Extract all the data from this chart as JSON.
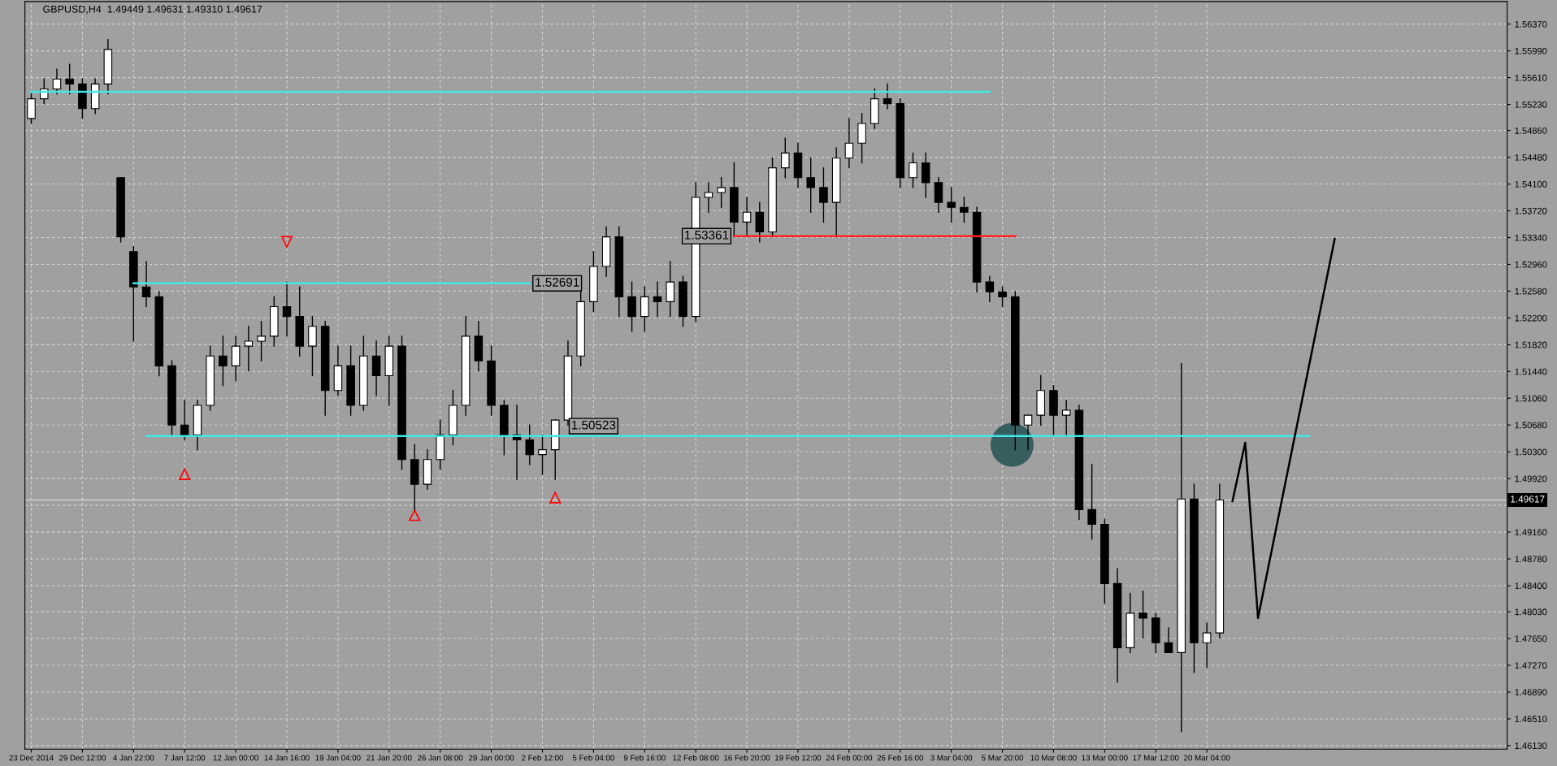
{
  "chart_data": {
    "type": "candlestick",
    "title": "GBPUSD,H4  1.49449 1.49631 1.49310 1.49617",
    "categories": [
      "23 Dec 2014",
      null,
      null,
      null,
      "29 Dec 12:00",
      null,
      null,
      null,
      "4 Jan 22:00",
      null,
      null,
      null,
      "7 Jan 12:00",
      null,
      null,
      null,
      "12 Jan 00:00",
      null,
      null,
      null,
      "14 Jan 16:00",
      null,
      null,
      null,
      "19 Jan 04:00",
      null,
      null,
      null,
      "21 Jan 20:00",
      null,
      null,
      null,
      "26 Jan 08:00",
      null,
      null,
      null,
      "29 Jan 00:00",
      null,
      null,
      null,
      "2 Feb 12:00",
      null,
      null,
      null,
      "5 Feb 04:00",
      null,
      null,
      null,
      "9 Feb 16:00",
      null,
      null,
      null,
      "12 Feb 08:00",
      null,
      null,
      null,
      "16 Feb 20:00",
      null,
      null,
      null,
      "19 Feb 12:00",
      null,
      null,
      null,
      "24 Feb 00:00",
      null,
      null,
      null,
      "26 Feb 16:00",
      null,
      null,
      null,
      "3 Mar 04:00",
      null,
      null,
      null,
      "5 Mar 20:00",
      null,
      null,
      null,
      "10 Mar 08:00",
      null,
      null,
      null,
      "13 Mar 00:00",
      null,
      null,
      null,
      "17 Mar 12:00",
      null,
      null,
      null,
      "20 Mar 04:00",
      null,
      null,
      null,
      null,
      null,
      null,
      null,
      null,
      null,
      null,
      null,
      null,
      null,
      null,
      null,
      null,
      null,
      null,
      null,
      null,
      null,
      null,
      null
    ],
    "ohlc": [
      [
        1.5503,
        1.5538,
        1.5496,
        1.5531
      ],
      [
        1.5531,
        1.5559,
        1.5524,
        1.5545
      ],
      [
        1.5545,
        1.5573,
        1.5538,
        1.5559
      ],
      [
        1.5559,
        1.558,
        1.5538,
        1.5552
      ],
      [
        1.5552,
        1.5559,
        1.5503,
        1.5517
      ],
      [
        1.5517,
        1.5559,
        1.551,
        1.5552
      ],
      [
        1.5552,
        1.5615,
        1.5538,
        1.5601
      ],
      [
        1.5419,
        1.5419,
        1.5328,
        1.5335
      ],
      [
        1.5314,
        1.5321,
        1.5187,
        1.5264
      ],
      [
        1.5264,
        1.53,
        1.5236,
        1.525
      ],
      [
        1.525,
        1.5257,
        1.5138,
        1.5152
      ],
      [
        1.5152,
        1.5159,
        1.5054,
        1.5068
      ],
      [
        1.5068,
        1.5103,
        1.5047,
        1.5054
      ],
      [
        1.5054,
        1.5103,
        1.5033,
        1.5096
      ],
      [
        1.5096,
        1.518,
        1.5089,
        1.5166
      ],
      [
        1.5166,
        1.5194,
        1.5124,
        1.5152
      ],
      [
        1.5152,
        1.5194,
        1.5131,
        1.518
      ],
      [
        1.518,
        1.5208,
        1.5145,
        1.5187
      ],
      [
        1.5187,
        1.5215,
        1.5159,
        1.5194
      ],
      [
        1.5194,
        1.525,
        1.518,
        1.5236
      ],
      [
        1.5236,
        1.5271,
        1.5194,
        1.5222
      ],
      [
        1.5222,
        1.5264,
        1.5166,
        1.518
      ],
      [
        1.518,
        1.5222,
        1.5138,
        1.5208
      ],
      [
        1.5208,
        1.5215,
        1.5082,
        1.5117
      ],
      [
        1.5117,
        1.518,
        1.511,
        1.5152
      ],
      [
        1.5152,
        1.518,
        1.5082,
        1.5096
      ],
      [
        1.5096,
        1.5194,
        1.5089,
        1.5166
      ],
      [
        1.5166,
        1.5187,
        1.511,
        1.5138
      ],
      [
        1.5138,
        1.5194,
        1.5096,
        1.518
      ],
      [
        1.518,
        1.5194,
        1.5005,
        1.5019
      ],
      [
        1.5019,
        1.504,
        1.4948,
        1.4984
      ],
      [
        1.4984,
        1.5033,
        1.4977,
        1.5019
      ],
      [
        1.5019,
        1.5075,
        1.5005,
        1.5054
      ],
      [
        1.5054,
        1.5117,
        1.504,
        1.5096
      ],
      [
        1.5096,
        1.5222,
        1.5082,
        1.5194
      ],
      [
        1.5194,
        1.5215,
        1.5145,
        1.5159
      ],
      [
        1.5159,
        1.518,
        1.5082,
        1.5096
      ],
      [
        1.5096,
        1.5103,
        1.5026,
        1.5054
      ],
      [
        1.5054,
        1.5096,
        1.4991,
        1.5047
      ],
      [
        1.5047,
        1.5068,
        1.5012,
        1.5026
      ],
      [
        1.5026,
        1.5054,
        1.4998,
        1.5033
      ],
      [
        1.5033,
        1.5075,
        1.4991,
        1.5075
      ],
      [
        1.5075,
        1.5187,
        1.5068,
        1.5166
      ],
      [
        1.5166,
        1.5264,
        1.5152,
        1.5243
      ],
      [
        1.5243,
        1.5314,
        1.5229,
        1.5293
      ],
      [
        1.5293,
        1.5349,
        1.5279,
        1.5335
      ],
      [
        1.5335,
        1.5349,
        1.5222,
        1.525
      ],
      [
        1.525,
        1.5271,
        1.5201,
        1.5222
      ],
      [
        1.5222,
        1.5264,
        1.5201,
        1.525
      ],
      [
        1.525,
        1.5271,
        1.5222,
        1.5243
      ],
      [
        1.5243,
        1.53,
        1.5222,
        1.5271
      ],
      [
        1.5271,
        1.5279,
        1.5208,
        1.5222
      ],
      [
        1.5222,
        1.5412,
        1.5215,
        1.5391
      ],
      [
        1.5391,
        1.5412,
        1.537,
        1.5398
      ],
      [
        1.5398,
        1.5419,
        1.5377,
        1.5405
      ],
      [
        1.5405,
        1.544,
        1.5335,
        1.5356
      ],
      [
        1.5356,
        1.5391,
        1.5335,
        1.537
      ],
      [
        1.537,
        1.5384,
        1.5328,
        1.5342
      ],
      [
        1.5342,
        1.5447,
        1.5335,
        1.5433
      ],
      [
        1.5433,
        1.5475,
        1.5419,
        1.5454
      ],
      [
        1.5454,
        1.5468,
        1.5405,
        1.5419
      ],
      [
        1.5419,
        1.5447,
        1.537,
        1.5405
      ],
      [
        1.5405,
        1.5433,
        1.5356,
        1.5384
      ],
      [
        1.5384,
        1.5461,
        1.5335,
        1.5447
      ],
      [
        1.5447,
        1.5503,
        1.5433,
        1.5468
      ],
      [
        1.5468,
        1.551,
        1.544,
        1.5496
      ],
      [
        1.5496,
        1.5545,
        1.5489,
        1.5531
      ],
      [
        1.5531,
        1.5552,
        1.5517,
        1.5524
      ],
      [
        1.5524,
        1.5531,
        1.5405,
        1.5419
      ],
      [
        1.5419,
        1.5454,
        1.5405,
        1.544
      ],
      [
        1.544,
        1.5454,
        1.5391,
        1.5412
      ],
      [
        1.5412,
        1.5419,
        1.537,
        1.5384
      ],
      [
        1.5384,
        1.5405,
        1.5356,
        1.5377
      ],
      [
        1.5377,
        1.5391,
        1.5356,
        1.537
      ],
      [
        1.537,
        1.5377,
        1.5257,
        1.5271
      ],
      [
        1.5271,
        1.5279,
        1.5243,
        1.5257
      ],
      [
        1.5257,
        1.5264,
        1.5236,
        1.525
      ],
      [
        1.525,
        1.5257,
        1.5033,
        1.5068
      ],
      [
        1.5068,
        1.5082,
        1.5033,
        1.5082
      ],
      [
        1.5082,
        1.5138,
        1.5068,
        1.5117
      ],
      [
        1.5117,
        1.5124,
        1.5054,
        1.5082
      ],
      [
        1.5082,
        1.5103,
        1.5054,
        1.5089
      ],
      [
        1.5089,
        1.5096,
        1.4934,
        1.4948
      ],
      [
        1.4948,
        1.5012,
        1.4906,
        1.4927
      ],
      [
        1.4927,
        1.4934,
        1.4815,
        1.4843
      ],
      [
        1.4843,
        1.4864,
        1.4703,
        1.4752
      ],
      [
        1.4752,
        1.4829,
        1.4745,
        1.4801
      ],
      [
        1.4801,
        1.4832,
        1.4766,
        1.4794
      ],
      [
        1.4794,
        1.4801,
        1.4745,
        1.4759
      ],
      [
        1.4759,
        1.478,
        1.4745,
        1.4745
      ],
      [
        1.4745,
        1.5155,
        1.4633,
        1.4963
      ],
      [
        1.4963,
        1.4984,
        1.4717,
        1.4759
      ],
      [
        1.4759,
        1.4787,
        1.4724,
        1.4773
      ],
      [
        1.4773,
        1.4984,
        1.4766,
        1.49617
      ],
      null,
      null,
      null,
      null,
      null,
      null,
      null,
      null,
      null,
      null,
      null,
      null,
      null,
      null,
      null,
      null,
      null,
      null,
      null,
      null,
      null,
      null
    ],
    "series": [
      {
        "type": "line",
        "color": "#40e8e8",
        "values": [
          1.5541,
          null,
          null,
          null,
          null,
          null,
          null,
          null,
          null,
          null,
          null,
          null,
          null,
          null,
          null,
          null,
          null,
          null,
          null,
          null,
          null,
          null,
          null,
          null,
          null,
          null,
          null,
          null,
          null,
          null,
          null,
          null,
          null,
          null,
          null,
          null,
          null,
          null,
          null,
          null,
          null,
          null,
          null,
          null,
          null,
          null,
          null,
          null,
          null,
          null,
          null,
          null,
          null,
          null,
          null,
          null,
          null,
          null,
          null,
          null,
          null,
          null,
          null,
          null,
          null,
          null,
          null,
          null,
          null,
          null,
          null,
          null,
          null,
          null,
          null,
          1.5541,
          null,
          null,
          null,
          null,
          null,
          null,
          null,
          null,
          null,
          null,
          null,
          null,
          null,
          null,
          null,
          null,
          null,
          null,
          null,
          null,
          null,
          null,
          null,
          null,
          null,
          null,
          null,
          null,
          null,
          null,
          null,
          null,
          null,
          null,
          null,
          null,
          null,
          null,
          null,
          null
        ]
      },
      {
        "type": "line",
        "color": "#40e8e8",
        "values": [
          null,
          null,
          null,
          null,
          null,
          null,
          null,
          null,
          1.52691,
          null,
          null,
          null,
          null,
          null,
          null,
          null,
          null,
          null,
          null,
          null,
          null,
          null,
          null,
          null,
          null,
          null,
          null,
          null,
          null,
          null,
          null,
          null,
          null,
          null,
          null,
          null,
          null,
          null,
          null,
          1.52691,
          null,
          null,
          null,
          null,
          null,
          null,
          null,
          null,
          null,
          null,
          null,
          null,
          null,
          null,
          null,
          null,
          null,
          null,
          null,
          null,
          null,
          null,
          null,
          null,
          null,
          null,
          null,
          null,
          null,
          null,
          null,
          null,
          null,
          null,
          null,
          null,
          null,
          null,
          null,
          null,
          null,
          null,
          null,
          null,
          null,
          null,
          null,
          null,
          null,
          null,
          null,
          null,
          null,
          null,
          null,
          null,
          null,
          null,
          null,
          null,
          null,
          null,
          null,
          null,
          null,
          null,
          null,
          null,
          null,
          null,
          null,
          null,
          null,
          null,
          null,
          null
        ],
        "value_labels": [
          null,
          null,
          null,
          null,
          null,
          null,
          null,
          null,
          null,
          null,
          null,
          null,
          null,
          null,
          null,
          null,
          null,
          null,
          null,
          null,
          null,
          null,
          null,
          null,
          null,
          null,
          null,
          null,
          null,
          null,
          null,
          null,
          null,
          null,
          null,
          null,
          null,
          null,
          null,
          "1.52691",
          null,
          null,
          null,
          null,
          null,
          null,
          null,
          null,
          null,
          null,
          null,
          null,
          null,
          null,
          null,
          null,
          null,
          null,
          null,
          null,
          null,
          null,
          null,
          null,
          null,
          null,
          null,
          null,
          null,
          null,
          null,
          null,
          null,
          null,
          null,
          null,
          null,
          null,
          null,
          null,
          null,
          null,
          null,
          null,
          null,
          null,
          null,
          null,
          null,
          null,
          null,
          null,
          null,
          null,
          null,
          null,
          null,
          null,
          null,
          null,
          null,
          null,
          null,
          null,
          null,
          null,
          null,
          null,
          null,
          null,
          null,
          null,
          null,
          null,
          null,
          null
        ]
      },
      {
        "type": "line",
        "color": "#40e8e8",
        "values": [
          null,
          null,
          null,
          null,
          null,
          null,
          null,
          null,
          null,
          1.50523,
          null,
          null,
          null,
          null,
          null,
          null,
          null,
          null,
          null,
          null,
          null,
          null,
          null,
          null,
          null,
          null,
          null,
          null,
          null,
          null,
          null,
          null,
          null,
          null,
          null,
          null,
          null,
          null,
          null,
          null,
          null,
          null,
          null,
          null,
          1.50523,
          null,
          null,
          null,
          null,
          null,
          null,
          null,
          null,
          null,
          null,
          null,
          null,
          null,
          null,
          null,
          null,
          null,
          null,
          null,
          null,
          null,
          null,
          null,
          null,
          null,
          null,
          null,
          null,
          null,
          null,
          null,
          null,
          null,
          null,
          null,
          null,
          null,
          null,
          null,
          null,
          null,
          null,
          null,
          null,
          null,
          null,
          null,
          null,
          null,
          null,
          null,
          null,
          null,
          null,
          null,
          1.50523,
          null,
          null,
          null,
          null,
          null,
          null,
          null,
          null,
          null,
          null,
          null,
          null,
          null,
          null,
          null
        ],
        "value_labels": [
          null,
          null,
          null,
          null,
          null,
          null,
          null,
          null,
          null,
          null,
          null,
          null,
          null,
          null,
          null,
          null,
          null,
          null,
          null,
          null,
          null,
          null,
          null,
          null,
          null,
          null,
          null,
          null,
          null,
          null,
          null,
          null,
          null,
          null,
          null,
          null,
          null,
          null,
          null,
          null,
          null,
          null,
          null,
          null,
          "1.50523",
          null,
          null,
          null,
          null,
          null,
          null,
          null,
          null,
          null,
          null,
          null,
          null,
          null,
          null,
          null,
          null,
          null,
          null,
          null,
          null,
          null,
          null,
          null,
          null,
          null,
          null,
          null,
          null,
          null,
          null,
          null,
          null,
          null,
          null,
          null,
          null,
          null,
          null,
          null,
          null,
          null,
          null,
          null,
          null,
          null,
          null,
          null,
          null,
          null,
          null,
          null,
          null,
          null,
          null,
          null,
          null,
          null,
          null,
          null,
          null,
          null,
          null,
          null,
          null,
          null,
          null,
          null,
          null,
          null,
          null,
          null
        ]
      },
      {
        "type": "line",
        "color": "#ff2020",
        "values": [
          null,
          null,
          null,
          null,
          null,
          null,
          null,
          null,
          null,
          null,
          null,
          null,
          null,
          null,
          null,
          null,
          null,
          null,
          null,
          null,
          null,
          null,
          null,
          null,
          null,
          null,
          null,
          null,
          null,
          null,
          null,
          null,
          null,
          null,
          null,
          null,
          null,
          null,
          null,
          null,
          null,
          null,
          null,
          null,
          null,
          null,
          null,
          null,
          null,
          null,
          null,
          null,
          null,
          null,
          null,
          1.53361,
          null,
          null,
          null,
          null,
          null,
          null,
          null,
          null,
          null,
          null,
          null,
          null,
          null,
          null,
          null,
          null,
          null,
          null,
          null,
          null,
          null,
          1.53361,
          null,
          null,
          null,
          null,
          null,
          null,
          null,
          null,
          null,
          null,
          null,
          null,
          null,
          null,
          null,
          null,
          null,
          null,
          null,
          null,
          null,
          null,
          null,
          null,
          null,
          null,
          null,
          null,
          null,
          null,
          null,
          null,
          null,
          null,
          null,
          null,
          null,
          null
        ],
        "value_labels": [
          null,
          null,
          null,
          null,
          null,
          null,
          null,
          null,
          null,
          null,
          null,
          null,
          null,
          null,
          null,
          null,
          null,
          null,
          null,
          null,
          null,
          null,
          null,
          null,
          null,
          null,
          null,
          null,
          null,
          null,
          null,
          null,
          null,
          null,
          null,
          null,
          null,
          null,
          null,
          null,
          null,
          null,
          null,
          null,
          null,
          null,
          null,
          null,
          null,
          null,
          null,
          null,
          null,
          null,
          null,
          "1.53361",
          null,
          null,
          null,
          null,
          null,
          null,
          null,
          null,
          null,
          null,
          null,
          null,
          null,
          null,
          null,
          null,
          null,
          null,
          null,
          null,
          null,
          null,
          null,
          null,
          null,
          null,
          null,
          null,
          null,
          null,
          null,
          null,
          null,
          null,
          null,
          null,
          null,
          null,
          null,
          null,
          null,
          null,
          null,
          null,
          null,
          null,
          null,
          null,
          null,
          null,
          null,
          null,
          null,
          null,
          null,
          null,
          null,
          null,
          null,
          null
        ]
      },
      {
        "type": "line",
        "color": "#000000",
        "values": [
          null,
          null,
          null,
          null,
          null,
          null,
          null,
          null,
          null,
          null,
          null,
          null,
          null,
          null,
          null,
          null,
          null,
          null,
          null,
          null,
          null,
          null,
          null,
          null,
          null,
          null,
          null,
          null,
          null,
          null,
          null,
          null,
          null,
          null,
          null,
          null,
          null,
          null,
          null,
          null,
          null,
          null,
          null,
          null,
          null,
          null,
          null,
          null,
          null,
          null,
          null,
          null,
          null,
          null,
          null,
          null,
          null,
          null,
          null,
          null,
          null,
          null,
          null,
          null,
          null,
          null,
          null,
          null,
          null,
          null,
          null,
          null,
          null,
          null,
          null,
          null,
          null,
          null,
          null,
          null,
          null,
          null,
          null,
          null,
          null,
          null,
          null,
          null,
          null,
          null,
          null,
          null,
          null,
          null,
          1.496,
          1.5043,
          1.4794,
          null,
          null,
          null,
          null,
          null,
          1.5332,
          null,
          null,
          null,
          null,
          null,
          null,
          null,
          null,
          null,
          null,
          null,
          null,
          null
        ]
      },
      {
        "type": "scatter",
        "color": "#ff0000",
        "marker": "triangle",
        "values": [
          null,
          null,
          null,
          null,
          null,
          null,
          null,
          null,
          null,
          null,
          null,
          null,
          1.4998,
          null,
          null,
          null,
          null,
          null,
          null,
          null,
          1.5328,
          null,
          null,
          null,
          null,
          null,
          null,
          null,
          null,
          null,
          1.494,
          null,
          null,
          null,
          null,
          null,
          null,
          null,
          null,
          null,
          null,
          1.4965,
          null,
          null,
          null,
          null,
          null,
          null,
          null,
          null,
          null,
          null,
          null,
          null,
          null,
          null,
          null,
          null,
          null,
          null,
          null,
          null,
          null,
          null,
          null,
          null,
          null,
          null,
          null,
          null,
          null,
          null,
          null,
          null,
          null,
          null,
          null,
          null,
          null,
          null,
          null,
          null,
          null,
          null,
          null,
          null,
          null,
          null,
          null,
          null,
          null,
          null,
          null,
          null,
          null,
          null,
          null,
          null,
          null,
          null,
          null,
          null,
          null,
          null,
          null,
          null,
          null,
          null,
          null,
          null,
          null,
          null,
          null,
          null,
          null,
          null
        ]
      }
    ],
    "ref_lines": [
      {
        "axis": "y",
        "value": 1.49617,
        "label": "1.49617",
        "color": "#d0d0d0"
      }
    ],
    "ylim": [
      1.4608,
      1.5669
    ],
    "yticks": [
      {
        "value": 1.5637,
        "label": "1.56370"
      },
      {
        "value": 1.5599,
        "label": "1.55990"
      },
      {
        "value": 1.5561,
        "label": "1.55610"
      },
      {
        "value": 1.5523,
        "label": "1.55230"
      },
      {
        "value": 1.5486,
        "label": "1.54860"
      },
      {
        "value": 1.5448,
        "label": "1.54480"
      },
      {
        "value": 1.541,
        "label": "1.54100"
      },
      {
        "value": 1.5372,
        "label": "1.53720"
      },
      {
        "value": 1.5334,
        "label": "1.53340"
      },
      {
        "value": 1.5296,
        "label": "1.52960"
      },
      {
        "value": 1.5258,
        "label": "1.52580"
      },
      {
        "value": 1.522,
        "label": "1.52200"
      },
      {
        "value": 1.5182,
        "label": "1.51820"
      },
      {
        "value": 1.5144,
        "label": "1.51440"
      },
      {
        "value": 1.5106,
        "label": "1.51060"
      },
      {
        "value": 1.5068,
        "label": "1.50680"
      },
      {
        "value": 1.503,
        "label": "1.50300"
      },
      {
        "value": 1.4992,
        "label": "1.49920"
      },
      {
        "value": 1.4954,
        "label": null
      },
      {
        "value": 1.4916,
        "label": "1.49160"
      },
      {
        "value": 1.4878,
        "label": "1.48780"
      },
      {
        "value": 1.484,
        "label": "1.48400"
      },
      {
        "value": 1.4803,
        "label": "1.48030"
      },
      {
        "value": 1.4765,
        "label": "1.47650"
      },
      {
        "value": 1.4727,
        "label": "1.47270"
      },
      {
        "value": 1.4689,
        "label": "1.46890"
      },
      {
        "value": 1.4651,
        "label": "1.46510"
      },
      {
        "value": 1.4613,
        "label": "1.46130"
      }
    ],
    "grid": true
  }
}
